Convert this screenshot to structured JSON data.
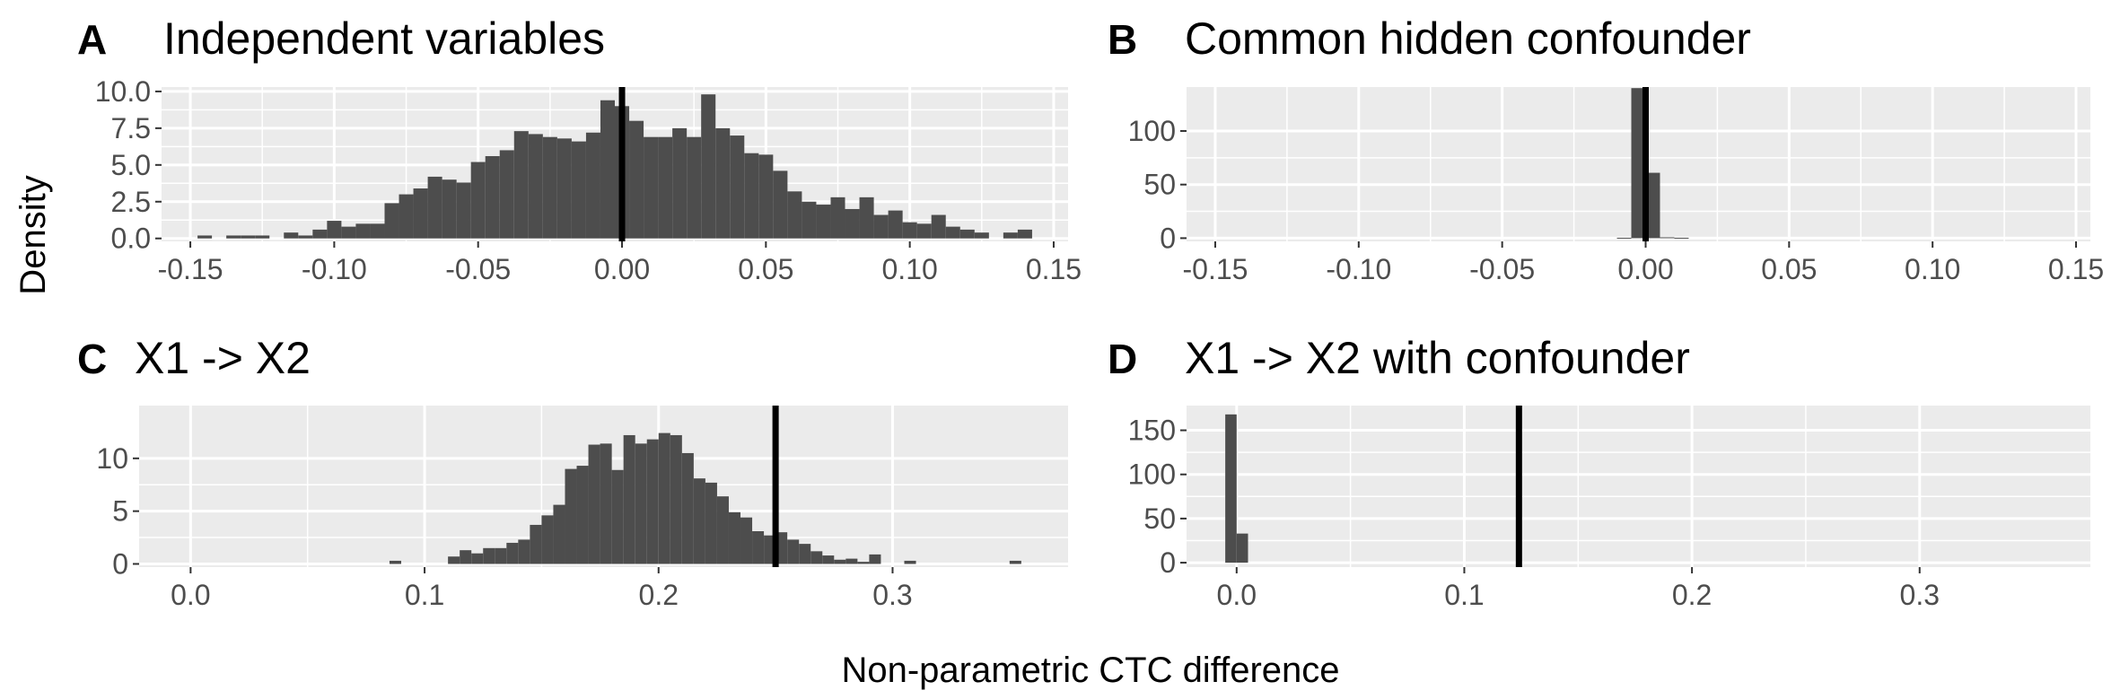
{
  "figure": {
    "ylabel": "Density",
    "xlabel": "Non-parametric CTC difference"
  },
  "colors": {
    "panel_background": "#ebebeb",
    "grid": "#ffffff",
    "bar_fill": "#4d4d4d",
    "reference_line": "#000000",
    "tick_text": "#4d4d4d"
  },
  "chart_data": [
    {
      "type": "histogram",
      "tag": "A",
      "title": "Independent variables",
      "x_ticks": [
        -0.15,
        -0.1,
        -0.05,
        0.0,
        0.05,
        0.1,
        0.15
      ],
      "x_tick_labels": [
        "-0.15",
        "-0.10",
        "-0.05",
        "0.00",
        "0.05",
        "0.10",
        "0.15"
      ],
      "y_ticks": [
        0,
        2.5,
        5,
        7.5,
        10
      ],
      "y_tick_labels": [
        "0.0",
        "2.5",
        "5.0",
        "7.5",
        "10.0"
      ],
      "xlim": [
        -0.16,
        0.155
      ],
      "ylim": [
        -0.2,
        10.3
      ],
      "bin_width": 0.005,
      "bins_x": [
        -0.145,
        -0.14,
        -0.135,
        -0.13,
        -0.125,
        -0.12,
        -0.115,
        -0.11,
        -0.105,
        -0.1,
        -0.095,
        -0.09,
        -0.085,
        -0.08,
        -0.075,
        -0.07,
        -0.065,
        -0.06,
        -0.055,
        -0.05,
        -0.045,
        -0.04,
        -0.035,
        -0.03,
        -0.025,
        -0.02,
        -0.015,
        -0.01,
        -0.005,
        0,
        0.005,
        0.01,
        0.015,
        0.02,
        0.025,
        0.03,
        0.035,
        0.04,
        0.045,
        0.05,
        0.055,
        0.06,
        0.065,
        0.07,
        0.075,
        0.08,
        0.085,
        0.09,
        0.095,
        0.1,
        0.105,
        0.11,
        0.115,
        0.12,
        0.125,
        0.13,
        0.135,
        0.14
      ],
      "values": [
        0.2,
        0,
        0.2,
        0.2,
        0.2,
        0,
        0.4,
        0.2,
        0.6,
        1.2,
        0.8,
        1.0,
        1.0,
        2.4,
        3.0,
        3.4,
        4.2,
        4.0,
        3.8,
        5.2,
        5.6,
        6.0,
        7.3,
        7.1,
        6.9,
        6.8,
        6.6,
        7.2,
        9.4,
        9.0,
        8.0,
        6.9,
        6.9,
        7.5,
        6.9,
        9.8,
        7.5,
        7.0,
        5.8,
        5.7,
        4.6,
        3.2,
        2.5,
        2.3,
        2.8,
        2.0,
        2.8,
        1.6,
        1.9,
        1.1,
        1.0,
        1.6,
        0.8,
        0.6,
        0.4,
        0,
        0.4,
        0.6
      ],
      "reference_line_x": 0.0
    },
    {
      "type": "histogram",
      "tag": "B",
      "title": "Common hidden confounder",
      "x_ticks": [
        -0.15,
        -0.1,
        -0.05,
        0.0,
        0.05,
        0.1,
        0.15
      ],
      "x_tick_labels": [
        "-0.15",
        "-0.10",
        "-0.05",
        "0.00",
        "0.05",
        "0.10",
        "0.15"
      ],
      "y_ticks": [
        0,
        50,
        100
      ],
      "y_tick_labels": [
        "0",
        "50",
        "100"
      ],
      "xlim": [
        -0.16,
        0.155
      ],
      "ylim": [
        -3,
        141
      ],
      "bin_width": 0.005,
      "bins_x": [
        -0.0075,
        -0.0025,
        0.0025,
        0.0075,
        0.0125
      ],
      "values": [
        0.4,
        140,
        61,
        0.8,
        0.4
      ],
      "reference_line_x": 0.0
    },
    {
      "type": "histogram",
      "tag": "C",
      "title": "X1 -> X2",
      "x_ticks": [
        0.0,
        0.1,
        0.2,
        0.3
      ],
      "x_tick_labels": [
        "0.0",
        "0.1",
        "0.2",
        "0.3"
      ],
      "y_ticks": [
        0,
        5,
        10
      ],
      "y_tick_labels": [
        "0",
        "5",
        "10"
      ],
      "xlim": [
        -0.022,
        0.375
      ],
      "ylim": [
        -0.3,
        15.0
      ],
      "bin_width": 0.005,
      "bins_x": [
        0.0875,
        0.1125,
        0.1175,
        0.1225,
        0.1275,
        0.1325,
        0.1375,
        0.1425,
        0.1475,
        0.1525,
        0.1575,
        0.1625,
        0.1675,
        0.1725,
        0.1775,
        0.1825,
        0.1875,
        0.1925,
        0.1975,
        0.2025,
        0.2075,
        0.2125,
        0.2175,
        0.2225,
        0.2275,
        0.2325,
        0.2375,
        0.2425,
        0.2475,
        0.2525,
        0.2575,
        0.2625,
        0.2675,
        0.2725,
        0.2775,
        0.2825,
        0.2875,
        0.2925,
        0.3075,
        0.3525
      ],
      "values": [
        0.3,
        0.7,
        1.3,
        1.0,
        1.5,
        1.5,
        2.0,
        2.3,
        3.7,
        4.6,
        5.6,
        9.0,
        9.3,
        11.3,
        11.4,
        8.9,
        12.2,
        11.4,
        11.8,
        12.4,
        12.2,
        10.5,
        8.1,
        7.7,
        6.4,
        4.9,
        4.4,
        3.1,
        2.7,
        3.0,
        2.3,
        1.9,
        1.2,
        0.8,
        0.4,
        0.5,
        0.2,
        0.9,
        0.3,
        0.3
      ],
      "reference_line_x": 0.25
    },
    {
      "type": "histogram",
      "tag": "D",
      "title": "X1 -> X2 with confounder",
      "x_ticks": [
        0.0,
        0.1,
        0.2,
        0.3
      ],
      "x_tick_labels": [
        "0.0",
        "0.1",
        "0.2",
        "0.3"
      ],
      "y_ticks": [
        0,
        50,
        100,
        150
      ],
      "y_tick_labels": [
        "0",
        "50",
        "100",
        "150"
      ],
      "xlim": [
        -0.022,
        0.375
      ],
      "ylim": [
        -5,
        178
      ],
      "bin_width": 0.005,
      "bins_x": [
        -0.0025,
        0.0025
      ],
      "values": [
        168,
        33
      ],
      "reference_line_x": 0.124
    }
  ]
}
